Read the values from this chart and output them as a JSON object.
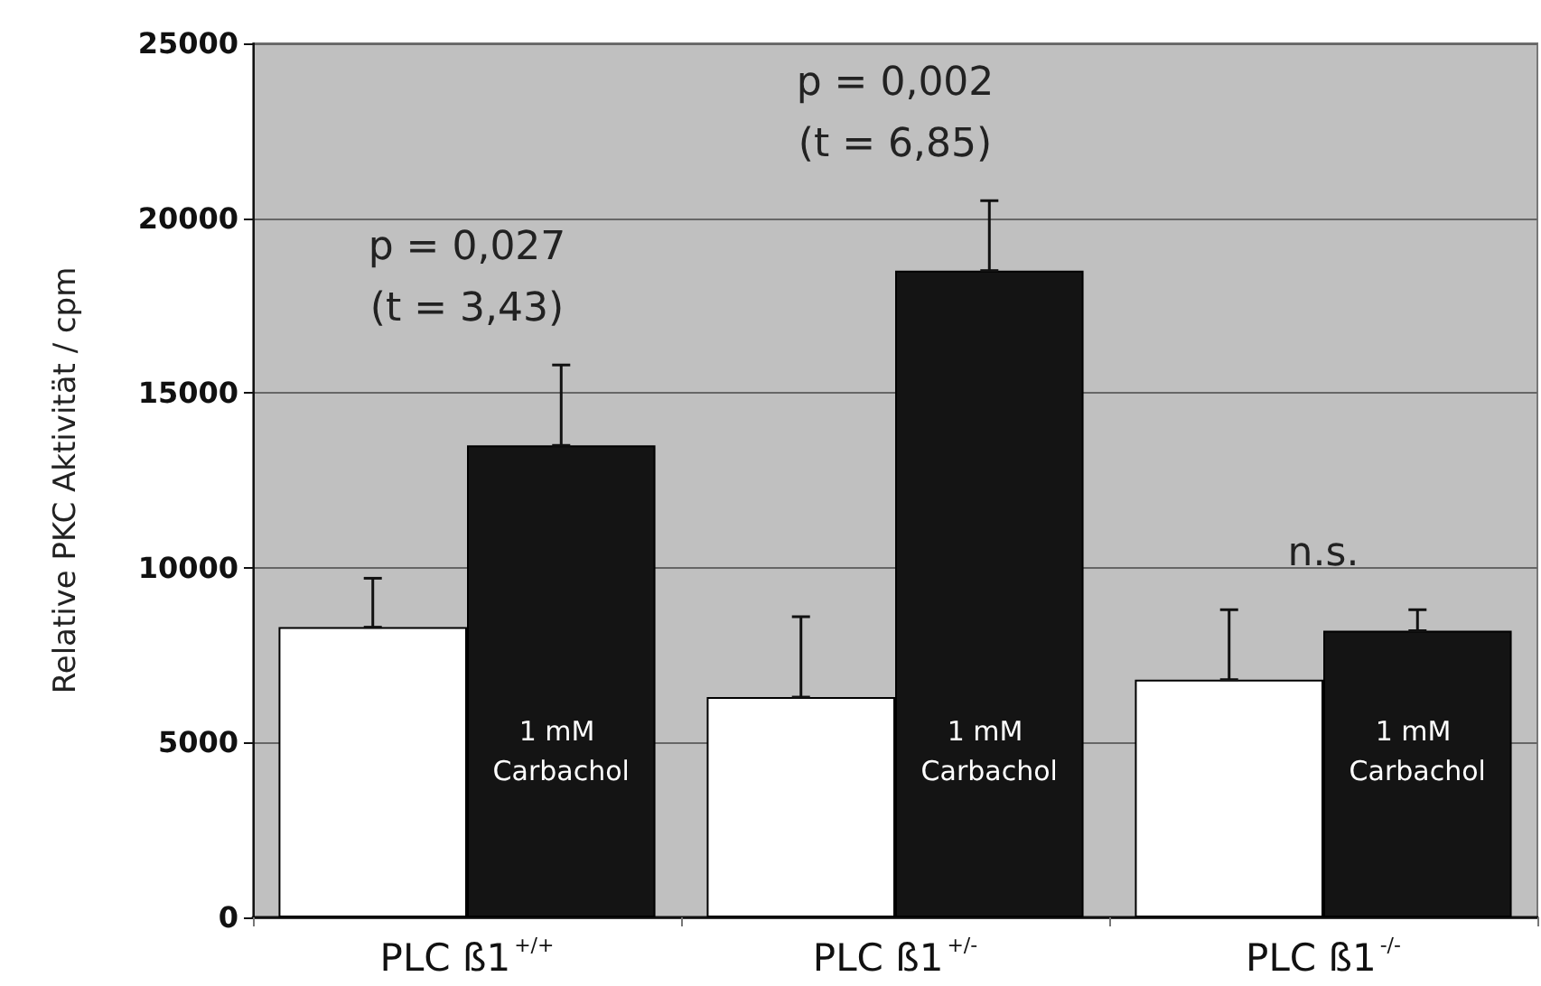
{
  "chart_data": {
    "type": "bar",
    "ylabel": "Relative PKC Aktivität / cpm",
    "categories": [
      "PLC ß1$^{+/+}$",
      "PLC ß1$^{+/-}$",
      "PLC ß1$^{-/-}$"
    ],
    "series": [
      {
        "color": "#ffffff",
        "values": [
          8300,
          6300,
          6800
        ],
        "errors": [
          [
            8300,
            9700
          ],
          [
            6300,
            8600
          ],
          [
            6800,
            8800
          ]
        ]
      },
      {
        "name": "1 mM Carbachol",
        "color": "#141414",
        "values": [
          13500,
          18500,
          8200
        ],
        "errors": [
          [
            13500,
            15800
          ],
          [
            18500,
            20500
          ],
          [
            8200,
            8800
          ]
        ]
      }
    ],
    "ylim": [
      0,
      25000
    ],
    "yticks": [
      0,
      5000,
      10000,
      15000,
      20000,
      25000
    ],
    "grid": "y",
    "legend": false,
    "annotations": [
      "p = 0,027\n(t = 3,43)",
      "p = 0,002\n(t = 6,85)",
      "n.s."
    ]
  }
}
